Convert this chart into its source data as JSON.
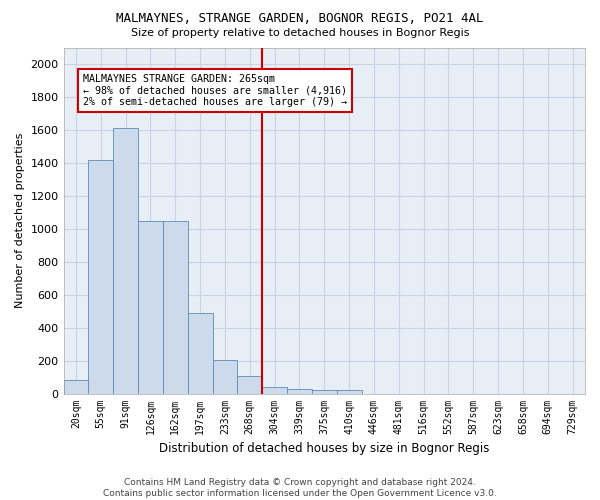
{
  "title": "MALMAYNES, STRANGE GARDEN, BOGNOR REGIS, PO21 4AL",
  "subtitle": "Size of property relative to detached houses in Bognor Regis",
  "xlabel": "Distribution of detached houses by size in Bognor Regis",
  "ylabel": "Number of detached properties",
  "bar_labels": [
    "20sqm",
    "55sqm",
    "91sqm",
    "126sqm",
    "162sqm",
    "197sqm",
    "233sqm",
    "268sqm",
    "304sqm",
    "339sqm",
    "375sqm",
    "410sqm",
    "446sqm",
    "481sqm",
    "516sqm",
    "552sqm",
    "587sqm",
    "623sqm",
    "658sqm",
    "694sqm",
    "729sqm"
  ],
  "bar_values": [
    85,
    1420,
    1610,
    1050,
    1050,
    490,
    205,
    105,
    40,
    30,
    20,
    20,
    0,
    0,
    0,
    0,
    0,
    0,
    0,
    0,
    0
  ],
  "bar_color": "#ccdaeb",
  "bar_edge_color": "#5b8db8",
  "property_line_x": 7.5,
  "annotation_text_line1": "MALMAYNES STRANGE GARDEN: 265sqm",
  "annotation_text_line2": "← 98% of detached houses are smaller (4,916)",
  "annotation_text_line3": "2% of semi-detached houses are larger (79) →",
  "annotation_box_color": "#ffffff",
  "annotation_box_edge": "#cc0000",
  "vline_color": "#cc0000",
  "grid_color": "#c8d4e4",
  "background_color": "#e8eef5",
  "ylim": [
    0,
    2100
  ],
  "yticks": [
    0,
    200,
    400,
    600,
    800,
    1000,
    1200,
    1400,
    1600,
    1800,
    2000
  ],
  "footer_line1": "Contains HM Land Registry data © Crown copyright and database right 2024.",
  "footer_line2": "Contains public sector information licensed under the Open Government Licence v3.0."
}
